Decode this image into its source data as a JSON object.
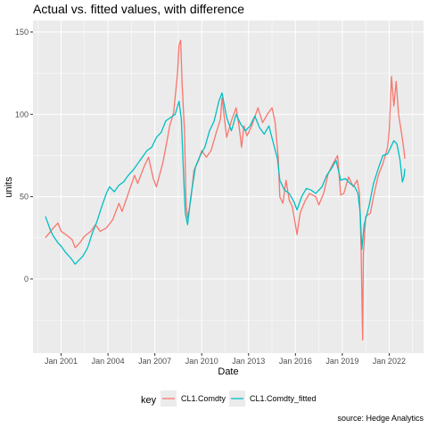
{
  "chart_data": {
    "type": "line",
    "title": "Actual vs. fitted values, with difference",
    "xlabel": "Date",
    "ylabel": "units",
    "caption": "source: Hedge Analytics",
    "xlim": [
      1999.2,
      2024.2
    ],
    "ylim": [
      -45,
      157
    ],
    "x_ticks": [
      {
        "x": 2001.0,
        "label": "Jan 2001"
      },
      {
        "x": 2004.0,
        "label": "Jan 2004"
      },
      {
        "x": 2007.0,
        "label": "Jan 2007"
      },
      {
        "x": 2010.0,
        "label": "Jan 2010"
      },
      {
        "x": 2013.0,
        "label": "Jan 2013"
      },
      {
        "x": 2016.0,
        "label": "Jan 2016"
      },
      {
        "x": 2019.0,
        "label": "Jan 2019"
      },
      {
        "x": 2022.0,
        "label": "Jan 2022"
      }
    ],
    "y_ticks": [
      {
        "y": 0,
        "label": "0"
      },
      {
        "y": 50,
        "label": "50"
      },
      {
        "y": 100,
        "label": "100"
      },
      {
        "y": 150,
        "label": "150"
      }
    ],
    "grid": true,
    "legend": {
      "title": "key",
      "position": "bottom"
    },
    "series": [
      {
        "name": "CL1.Comdty",
        "color": "#F8766D",
        "points": [
          [
            2000.0,
            25
          ],
          [
            2000.5,
            31
          ],
          [
            2000.8,
            34
          ],
          [
            2001.0,
            29
          ],
          [
            2001.3,
            27
          ],
          [
            2001.7,
            24
          ],
          [
            2001.9,
            19
          ],
          [
            2002.2,
            22
          ],
          [
            2002.5,
            26
          ],
          [
            2002.9,
            29
          ],
          [
            2003.2,
            33
          ],
          [
            2003.5,
            29
          ],
          [
            2003.9,
            31
          ],
          [
            2004.3,
            36
          ],
          [
            2004.7,
            46
          ],
          [
            2004.9,
            41
          ],
          [
            2005.3,
            52
          ],
          [
            2005.7,
            63
          ],
          [
            2005.9,
            58
          ],
          [
            2006.3,
            68
          ],
          [
            2006.6,
            74
          ],
          [
            2006.9,
            61
          ],
          [
            2007.1,
            56
          ],
          [
            2007.5,
            70
          ],
          [
            2007.8,
            85
          ],
          [
            2007.95,
            93
          ],
          [
            2008.2,
            101
          ],
          [
            2008.45,
            125
          ],
          [
            2008.55,
            142
          ],
          [
            2008.65,
            145
          ],
          [
            2008.75,
            118
          ],
          [
            2008.9,
            90
          ],
          [
            2009.0,
            45
          ],
          [
            2009.1,
            37
          ],
          [
            2009.3,
            48
          ],
          [
            2009.5,
            66
          ],
          [
            2009.8,
            72
          ],
          [
            2010.0,
            78
          ],
          [
            2010.3,
            74
          ],
          [
            2010.6,
            78
          ],
          [
            2010.9,
            88
          ],
          [
            2011.2,
            97
          ],
          [
            2011.3,
            110
          ],
          [
            2011.6,
            86
          ],
          [
            2011.9,
            96
          ],
          [
            2012.2,
            104
          ],
          [
            2012.4,
            92
          ],
          [
            2012.55,
            80
          ],
          [
            2012.7,
            93
          ],
          [
            2012.9,
            87
          ],
          [
            2013.2,
            93
          ],
          [
            2013.6,
            104
          ],
          [
            2013.9,
            95
          ],
          [
            2014.2,
            100
          ],
          [
            2014.5,
            104
          ],
          [
            2014.7,
            95
          ],
          [
            2014.9,
            73
          ],
          [
            2015.0,
            50
          ],
          [
            2015.2,
            46
          ],
          [
            2015.4,
            60
          ],
          [
            2015.6,
            48
          ],
          [
            2015.8,
            44
          ],
          [
            2016.0,
            33
          ],
          [
            2016.1,
            27
          ],
          [
            2016.3,
            40
          ],
          [
            2016.6,
            47
          ],
          [
            2016.9,
            52
          ],
          [
            2017.3,
            50
          ],
          [
            2017.5,
            45
          ],
          [
            2017.8,
            52
          ],
          [
            2018.1,
            64
          ],
          [
            2018.4,
            70
          ],
          [
            2018.7,
            75
          ],
          [
            2018.9,
            51
          ],
          [
            2019.1,
            52
          ],
          [
            2019.4,
            62
          ],
          [
            2019.7,
            56
          ],
          [
            2019.95,
            60
          ],
          [
            2020.1,
            52
          ],
          [
            2020.2,
            20
          ],
          [
            2020.3,
            -37
          ],
          [
            2020.35,
            15
          ],
          [
            2020.5,
            38
          ],
          [
            2020.8,
            40
          ],
          [
            2021.0,
            50
          ],
          [
            2021.3,
            63
          ],
          [
            2021.6,
            70
          ],
          [
            2021.9,
            80
          ],
          [
            2022.0,
            90
          ],
          [
            2022.15,
            123
          ],
          [
            2022.3,
            105
          ],
          [
            2022.45,
            120
          ],
          [
            2022.6,
            100
          ],
          [
            2022.8,
            88
          ],
          [
            2022.95,
            78
          ],
          [
            2023.0,
            73
          ]
        ]
      },
      {
        "name": "CL1.Comdty_fitted",
        "color": "#00BFC4",
        "points": [
          [
            2000.0,
            38
          ],
          [
            2000.3,
            30
          ],
          [
            2000.5,
            26
          ],
          [
            2000.8,
            22
          ],
          [
            2001.0,
            20
          ],
          [
            2001.3,
            16
          ],
          [
            2001.6,
            13
          ],
          [
            2001.9,
            9
          ],
          [
            2002.1,
            11
          ],
          [
            2002.4,
            14
          ],
          [
            2002.7,
            19
          ],
          [
            2003.0,
            28
          ],
          [
            2003.3,
            35
          ],
          [
            2003.6,
            44
          ],
          [
            2003.9,
            52
          ],
          [
            2004.1,
            56
          ],
          [
            2004.4,
            53
          ],
          [
            2004.7,
            57
          ],
          [
            2005.0,
            59
          ],
          [
            2005.3,
            63
          ],
          [
            2005.6,
            66
          ],
          [
            2005.9,
            70
          ],
          [
            2006.2,
            74
          ],
          [
            2006.5,
            78
          ],
          [
            2006.8,
            80
          ],
          [
            2007.1,
            86
          ],
          [
            2007.4,
            89
          ],
          [
            2007.7,
            96
          ],
          [
            2008.0,
            98
          ],
          [
            2008.3,
            100
          ],
          [
            2008.55,
            108
          ],
          [
            2008.7,
            97
          ],
          [
            2008.85,
            60
          ],
          [
            2008.95,
            40
          ],
          [
            2009.1,
            33
          ],
          [
            2009.3,
            50
          ],
          [
            2009.6,
            68
          ],
          [
            2009.9,
            75
          ],
          [
            2010.2,
            80
          ],
          [
            2010.5,
            90
          ],
          [
            2010.8,
            96
          ],
          [
            2011.1,
            108
          ],
          [
            2011.3,
            113
          ],
          [
            2011.6,
            98
          ],
          [
            2011.9,
            90
          ],
          [
            2012.2,
            100
          ],
          [
            2012.5,
            94
          ],
          [
            2012.8,
            90
          ],
          [
            2013.1,
            93
          ],
          [
            2013.4,
            99
          ],
          [
            2013.7,
            92
          ],
          [
            2014.0,
            88
          ],
          [
            2014.3,
            93
          ],
          [
            2014.6,
            82
          ],
          [
            2014.85,
            73
          ],
          [
            2015.0,
            60
          ],
          [
            2015.3,
            54
          ],
          [
            2015.6,
            52
          ],
          [
            2015.9,
            47
          ],
          [
            2016.1,
            42
          ],
          [
            2016.4,
            50
          ],
          [
            2016.7,
            55
          ],
          [
            2017.0,
            54
          ],
          [
            2017.3,
            52
          ],
          [
            2017.7,
            56
          ],
          [
            2018.0,
            63
          ],
          [
            2018.3,
            67
          ],
          [
            2018.6,
            72
          ],
          [
            2018.9,
            60
          ],
          [
            2019.2,
            61
          ],
          [
            2019.5,
            58
          ],
          [
            2019.8,
            56
          ],
          [
            2020.0,
            52
          ],
          [
            2020.15,
            40
          ],
          [
            2020.25,
            18
          ],
          [
            2020.4,
            33
          ],
          [
            2020.7,
            44
          ],
          [
            2021.0,
            58
          ],
          [
            2021.3,
            67
          ],
          [
            2021.6,
            75
          ],
          [
            2021.9,
            76
          ],
          [
            2022.1,
            80
          ],
          [
            2022.3,
            84
          ],
          [
            2022.5,
            82
          ],
          [
            2022.7,
            72
          ],
          [
            2022.85,
            59
          ],
          [
            2022.95,
            62
          ],
          [
            2023.0,
            67
          ]
        ]
      }
    ]
  }
}
